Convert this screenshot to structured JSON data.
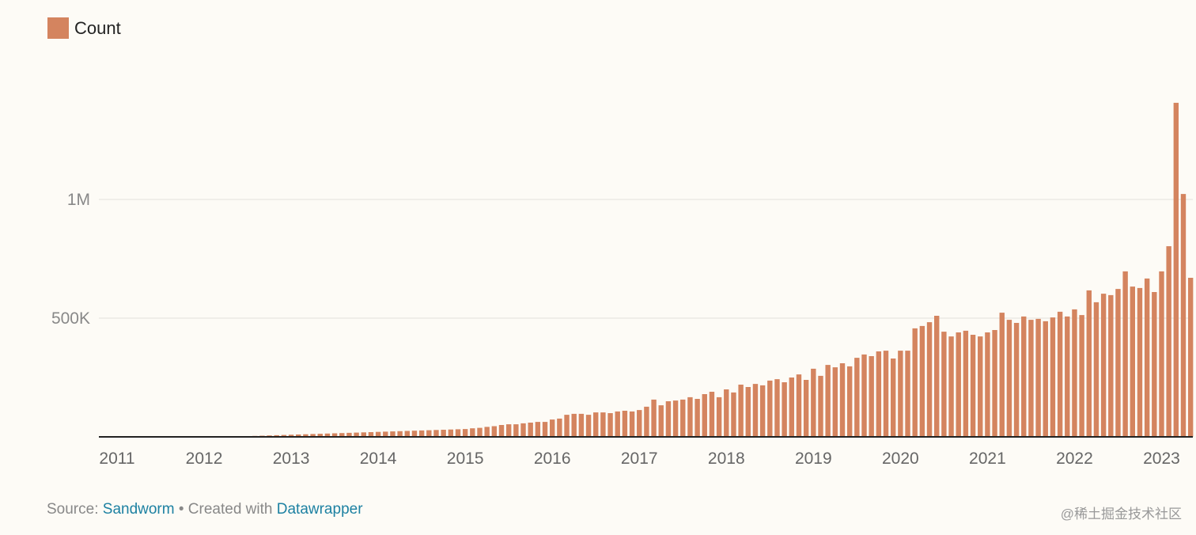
{
  "chart_data": {
    "type": "bar",
    "title": "",
    "xlabel": "",
    "ylabel": "",
    "legend": {
      "entries": [
        "Count"
      ],
      "placement": "top-left"
    },
    "colors": {
      "bar": "#d4845f",
      "grid": "#e3e1dc",
      "baseline": "#222222",
      "link": "#1d81a2"
    },
    "ylim": [
      0,
      1450000
    ],
    "y_ticks": [
      {
        "value": 500000,
        "label": "500K"
      },
      {
        "value": 1000000,
        "label": "1M"
      }
    ],
    "x_ticks": [
      "2011",
      "2012",
      "2013",
      "2014",
      "2015",
      "2016",
      "2017",
      "2018",
      "2019",
      "2020",
      "2021",
      "2022",
      "2023"
    ],
    "grid": true,
    "categories": [
      "2011-01",
      "2011-02",
      "2011-03",
      "2011-04",
      "2011-05",
      "2011-06",
      "2011-07",
      "2011-08",
      "2011-09",
      "2011-10",
      "2011-11",
      "2011-12",
      "2012-01",
      "2012-02",
      "2012-03",
      "2012-04",
      "2012-05",
      "2012-06",
      "2012-07",
      "2012-08",
      "2012-09",
      "2012-10",
      "2012-11",
      "2012-12",
      "2013-01",
      "2013-02",
      "2013-03",
      "2013-04",
      "2013-05",
      "2013-06",
      "2013-07",
      "2013-08",
      "2013-09",
      "2013-10",
      "2013-11",
      "2013-12",
      "2014-01",
      "2014-02",
      "2014-03",
      "2014-04",
      "2014-05",
      "2014-06",
      "2014-07",
      "2014-08",
      "2014-09",
      "2014-10",
      "2014-11",
      "2014-12",
      "2015-01",
      "2015-02",
      "2015-03",
      "2015-04",
      "2015-05",
      "2015-06",
      "2015-07",
      "2015-08",
      "2015-09",
      "2015-10",
      "2015-11",
      "2015-12",
      "2016-01",
      "2016-02",
      "2016-03",
      "2016-04",
      "2016-05",
      "2016-06",
      "2016-07",
      "2016-08",
      "2016-09",
      "2016-10",
      "2016-11",
      "2016-12",
      "2017-01",
      "2017-02",
      "2017-03",
      "2017-04",
      "2017-05",
      "2017-06",
      "2017-07",
      "2017-08",
      "2017-09",
      "2017-10",
      "2017-11",
      "2017-12",
      "2018-01",
      "2018-02",
      "2018-03",
      "2018-04",
      "2018-05",
      "2018-06",
      "2018-07",
      "2018-08",
      "2018-09",
      "2018-10",
      "2018-11",
      "2018-12",
      "2019-01",
      "2019-02",
      "2019-03",
      "2019-04",
      "2019-05",
      "2019-06",
      "2019-07",
      "2019-08",
      "2019-09",
      "2019-10",
      "2019-11",
      "2019-12",
      "2020-01",
      "2020-02",
      "2020-03",
      "2020-04",
      "2020-05",
      "2020-06",
      "2020-07",
      "2020-08",
      "2020-09",
      "2020-10",
      "2020-11",
      "2020-12",
      "2021-01",
      "2021-02",
      "2021-03",
      "2021-04",
      "2021-05",
      "2021-06",
      "2021-07",
      "2021-08",
      "2021-09",
      "2021-10",
      "2021-11",
      "2021-12",
      "2022-01",
      "2022-02",
      "2022-03",
      "2022-04",
      "2022-05",
      "2022-06",
      "2022-07",
      "2022-08",
      "2022-09",
      "2022-10",
      "2022-11",
      "2022-12",
      "2023-01",
      "2023-02",
      "2023-03",
      "2023-04",
      "2023-05"
    ],
    "series": [
      {
        "name": "Count",
        "values": [
          0,
          0,
          0,
          0,
          0,
          0,
          0,
          0,
          0,
          0,
          0,
          0,
          1000,
          1000,
          1000,
          2000,
          2000,
          3000,
          3000,
          4000,
          5000,
          6000,
          7000,
          8000,
          9000,
          10000,
          11000,
          12000,
          13000,
          14000,
          15000,
          16000,
          17000,
          18000,
          19000,
          20000,
          21000,
          22000,
          23000,
          24000,
          25000,
          26000,
          27000,
          28000,
          29000,
          30000,
          31000,
          32000,
          33000,
          36000,
          38000,
          42000,
          45000,
          50000,
          53000,
          53000,
          57000,
          60000,
          63000,
          63000,
          73000,
          77000,
          93000,
          97000,
          97000,
          93000,
          103000,
          103000,
          100000,
          107000,
          110000,
          107000,
          113000,
          127000,
          157000,
          133000,
          150000,
          153000,
          157000,
          167000,
          160000,
          180000,
          190000,
          167000,
          200000,
          187000,
          220000,
          210000,
          223000,
          217000,
          237000,
          243000,
          230000,
          250000,
          263000,
          240000,
          287000,
          257000,
          303000,
          293000,
          310000,
          297000,
          333000,
          347000,
          340000,
          360000,
          363000,
          330000,
          363000,
          363000,
          457000,
          467000,
          483000,
          510000,
          443000,
          423000,
          440000,
          447000,
          430000,
          423000,
          440000,
          450000,
          523000,
          493000,
          480000,
          507000,
          493000,
          497000,
          487000,
          503000,
          527000,
          507000,
          537000,
          513000,
          617000,
          567000,
          603000,
          597000,
          623000,
          697000,
          633000,
          627000,
          667000,
          610000,
          697000,
          803000,
          1407000,
          1023000,
          670000
        ]
      }
    ]
  },
  "footer": {
    "source_prefix": "Source: ",
    "source_name": "Sandworm",
    "separator": " • Created with ",
    "tool_name": "Datawrapper"
  },
  "watermark": "@稀土掘金技术社区"
}
